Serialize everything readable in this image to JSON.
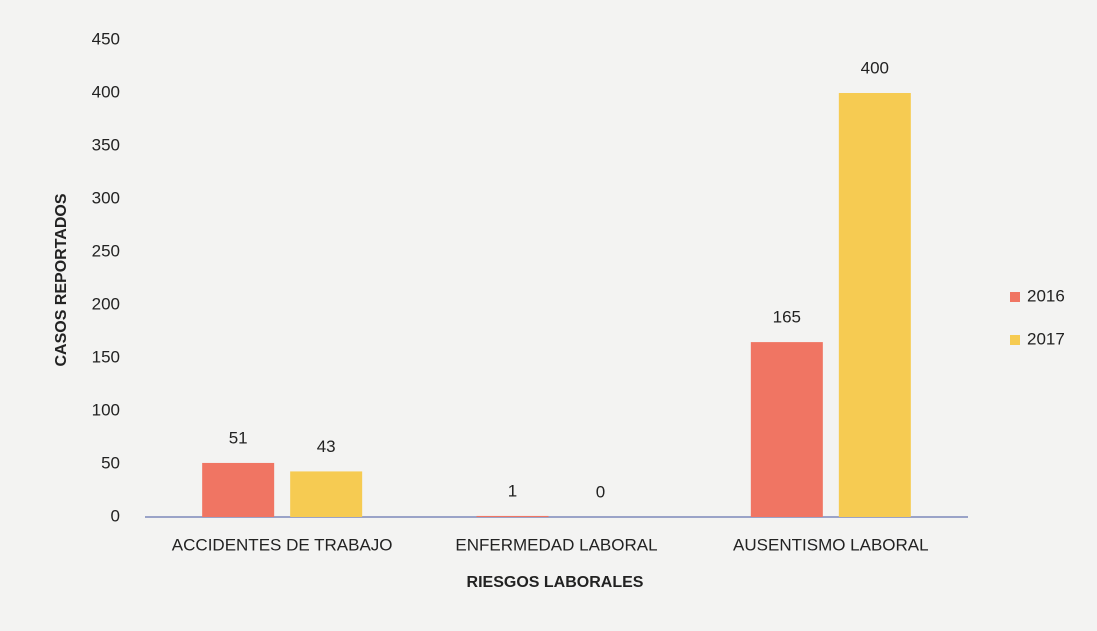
{
  "chart_data": {
    "type": "bar",
    "x_label": "RIESGOS LABORALES",
    "y_label": "CASOS REPORTADOS",
    "categories": [
      "ACCIDENTES DE TRABAJO",
      "ENFERMEDAD LABORAL",
      "AUSENTISMO LABORAL"
    ],
    "series": [
      {
        "name": "2016",
        "color": "#f07563",
        "values": [
          51,
          1,
          165
        ]
      },
      {
        "name": "2017",
        "color": "#f6cb52",
        "values": [
          43,
          0,
          400
        ]
      }
    ],
    "ylim": [
      0,
      450
    ],
    "yticks": [
      0,
      50,
      100,
      150,
      200,
      250,
      300,
      350,
      400,
      450
    ],
    "grid": false,
    "legend": "right"
  }
}
